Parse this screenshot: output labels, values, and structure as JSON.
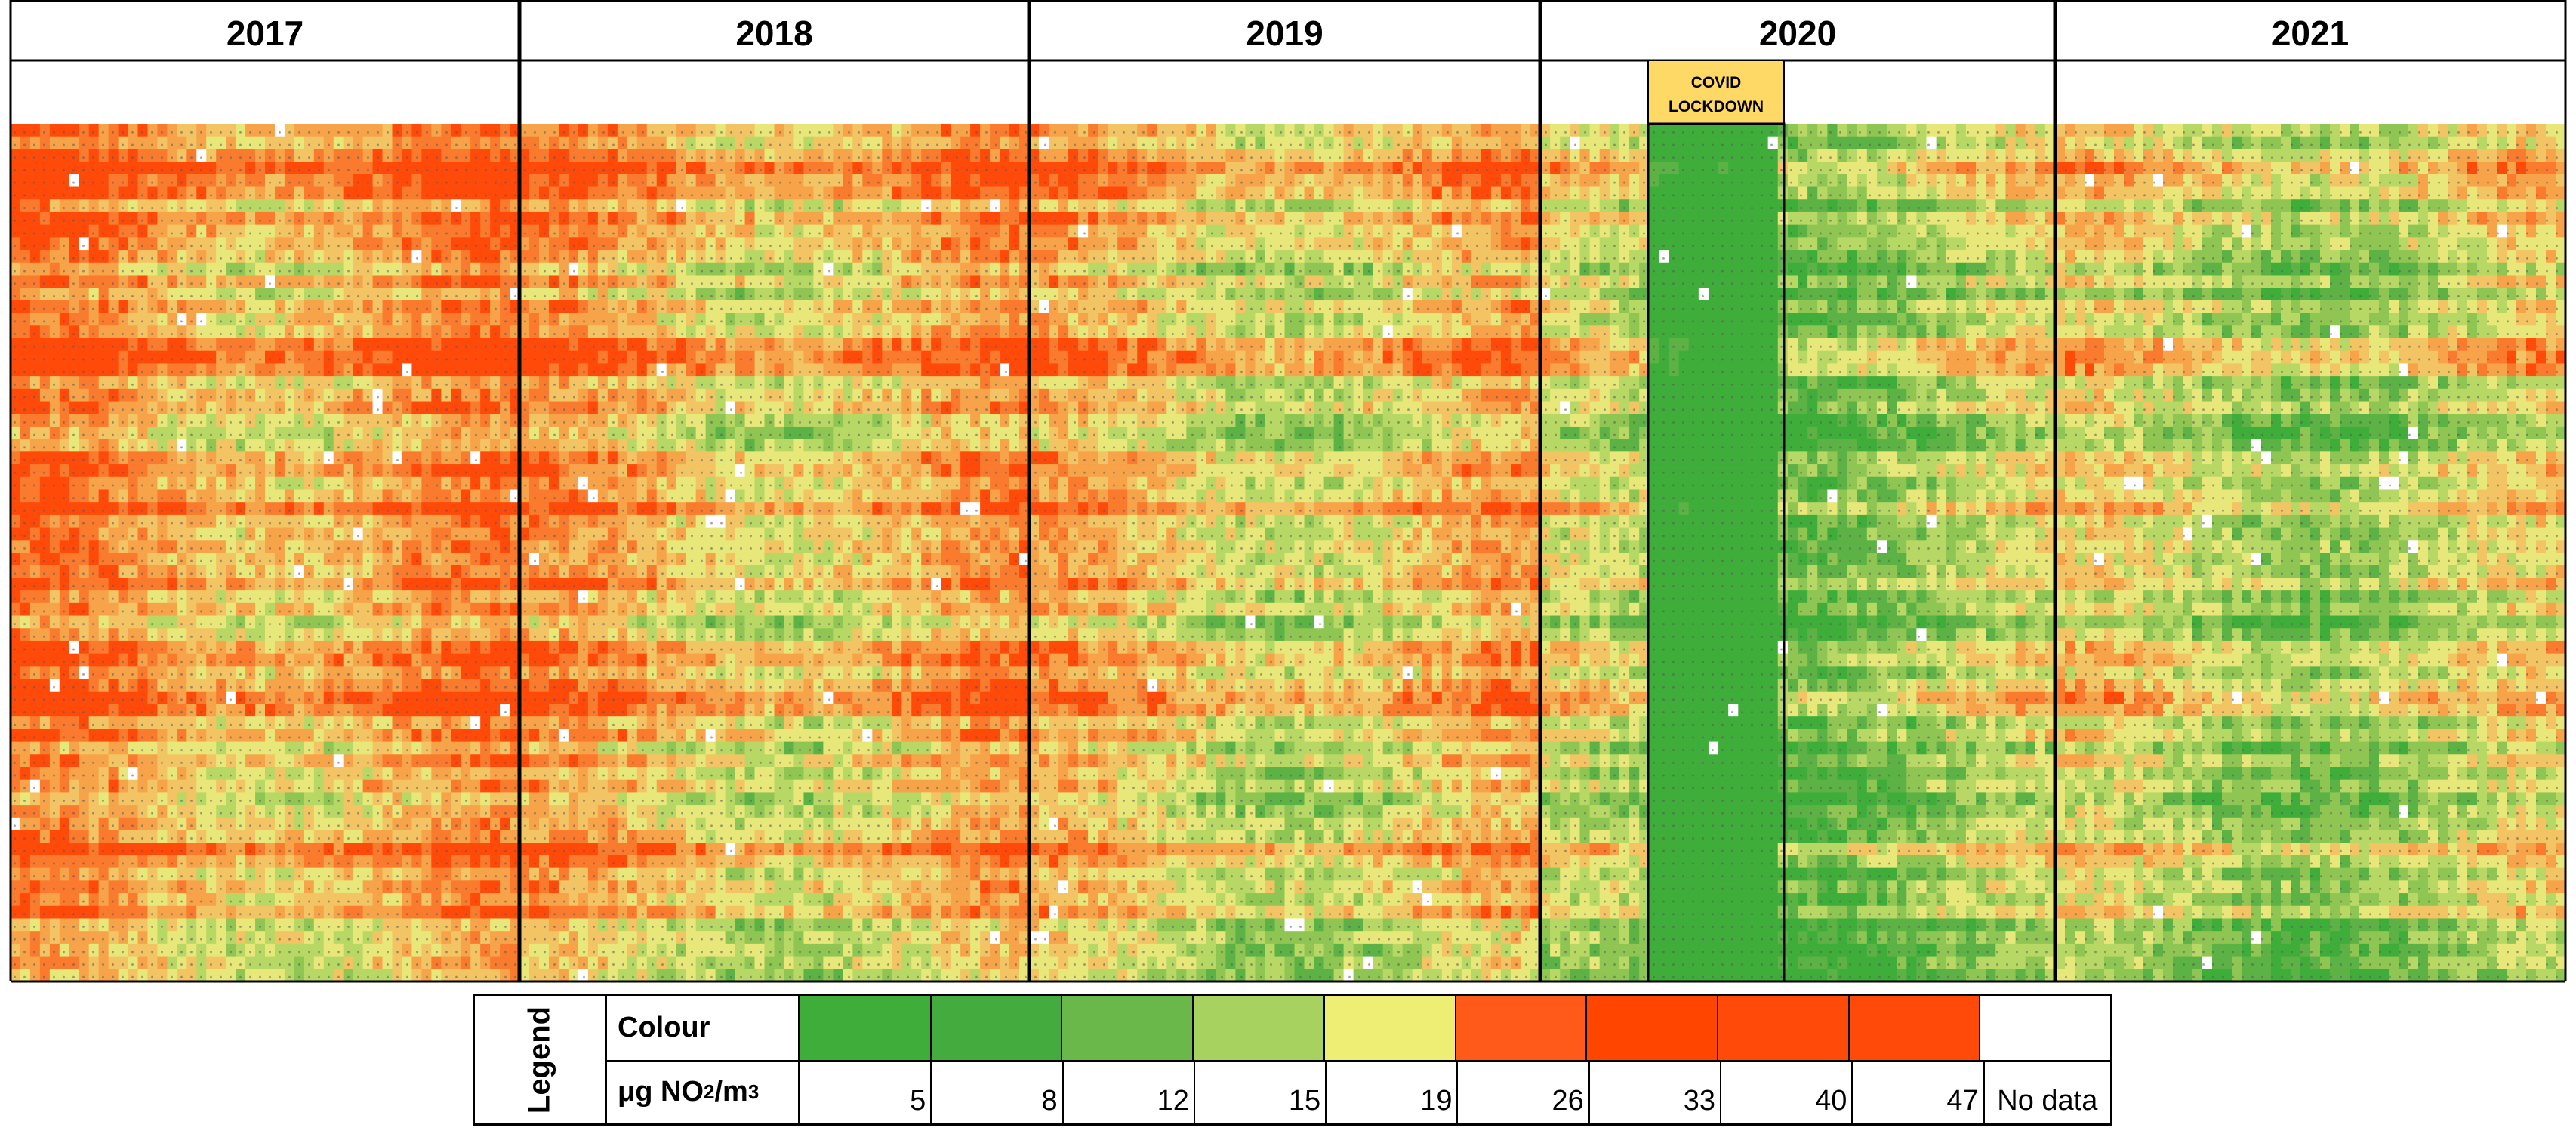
{
  "chart_data": {
    "type": "heatmap",
    "years": [
      "2017",
      "2018",
      "2019",
      "2020",
      "2021"
    ],
    "annotation": {
      "line1": "COVID",
      "line2": "LOCKDOWN"
    },
    "legend": {
      "title": "Legend",
      "colour_label": "Colour",
      "unit_label_prefix": "μg NO",
      "unit_label_sub": "2",
      "unit_label_mid": "/m",
      "unit_label_sup": "3",
      "levels": [
        {
          "value": "5",
          "color": "#3ead3a"
        },
        {
          "value": "8",
          "color": "#44ab3e"
        },
        {
          "value": "12",
          "color": "#6ab74a"
        },
        {
          "value": "15",
          "color": "#a8d25f"
        },
        {
          "value": "19",
          "color": "#eeee74"
        },
        {
          "value": "26",
          "color": "#ff5a19"
        },
        {
          "value": "33",
          "color": "#ff4500"
        },
        {
          "value": "40",
          "color": "#ff4a0a"
        },
        {
          "value": "47",
          "color": "#ff4a0a"
        },
        {
          "value": "No data",
          "color": "#ffffff"
        }
      ]
    },
    "rows": 68,
    "columns_per_year": 52,
    "lockdown_week_range_2020": [
      11,
      23
    ]
  }
}
